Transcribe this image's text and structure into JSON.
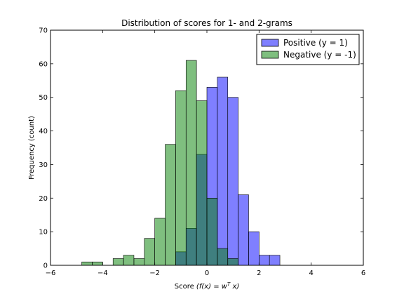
{
  "chart_data": {
    "type": "histogram",
    "title": "Distribution of scores for 1- and 2-grams",
    "xlabel": "Score (f(x) = wᵀx)",
    "ylabel": "Frequency (count)",
    "xlim": [
      -6,
      6
    ],
    "ylim": [
      0,
      70
    ],
    "xticks": [
      -6,
      -4,
      -2,
      0,
      2,
      4,
      6
    ],
    "yticks": [
      0,
      10,
      20,
      30,
      40,
      50,
      60,
      70
    ],
    "xtick_labels": [
      "−6",
      "−4",
      "−2",
      "0",
      "2",
      "4",
      "6"
    ],
    "ytick_labels": [
      "0",
      "10",
      "20",
      "30",
      "40",
      "50",
      "60",
      "70"
    ],
    "legend_position": "upper-right",
    "colors": {
      "positive": "#0000ff",
      "negative": "#008000",
      "overlap": "#3b7a7a",
      "bar_edge": "#000000"
    },
    "series": [
      {
        "name": "Positive (y = 1)",
        "color": "#0000ff",
        "alpha": 0.5,
        "bins": [
          {
            "x0": -1.2,
            "x1": -0.8,
            "count": 4
          },
          {
            "x0": -0.8,
            "x1": -0.4,
            "count": 11
          },
          {
            "x0": -0.4,
            "x1": 0.0,
            "count": 33
          },
          {
            "x0": 0.0,
            "x1": 0.4,
            "count": 53
          },
          {
            "x0": 0.4,
            "x1": 0.8,
            "count": 56
          },
          {
            "x0": 0.8,
            "x1": 1.2,
            "count": 50
          },
          {
            "x0": 1.2,
            "x1": 1.6,
            "count": 21
          },
          {
            "x0": 1.6,
            "x1": 2.0,
            "count": 10
          },
          {
            "x0": 2.0,
            "x1": 2.4,
            "count": 3
          },
          {
            "x0": 2.4,
            "x1": 2.8,
            "count": 3
          }
        ]
      },
      {
        "name": "Negative (y = -1)",
        "color": "#008000",
        "alpha": 0.5,
        "bins": [
          {
            "x0": -6.0,
            "x1": -5.6,
            "count": 0
          },
          {
            "x0": -4.8,
            "x1": -4.4,
            "count": 1
          },
          {
            "x0": -4.4,
            "x1": -4.0,
            "count": 1
          },
          {
            "x0": -3.6,
            "x1": -3.2,
            "count": 2
          },
          {
            "x0": -3.2,
            "x1": -2.8,
            "count": 3
          },
          {
            "x0": -2.8,
            "x1": -2.4,
            "count": 2
          },
          {
            "x0": -2.4,
            "x1": -2.0,
            "count": 8
          },
          {
            "x0": -2.0,
            "x1": -1.6,
            "count": 14
          },
          {
            "x0": -1.6,
            "x1": -1.2,
            "count": 36
          },
          {
            "x0": -1.2,
            "x1": -0.8,
            "count": 52
          },
          {
            "x0": -0.8,
            "x1": -0.4,
            "count": 61
          },
          {
            "x0": -0.4,
            "x1": 0.0,
            "count": 49
          },
          {
            "x0": 0.0,
            "x1": 0.4,
            "count": 20
          },
          {
            "x0": 0.4,
            "x1": 0.8,
            "count": 5
          },
          {
            "x0": 0.8,
            "x1": 1.2,
            "count": 2
          }
        ]
      }
    ]
  }
}
